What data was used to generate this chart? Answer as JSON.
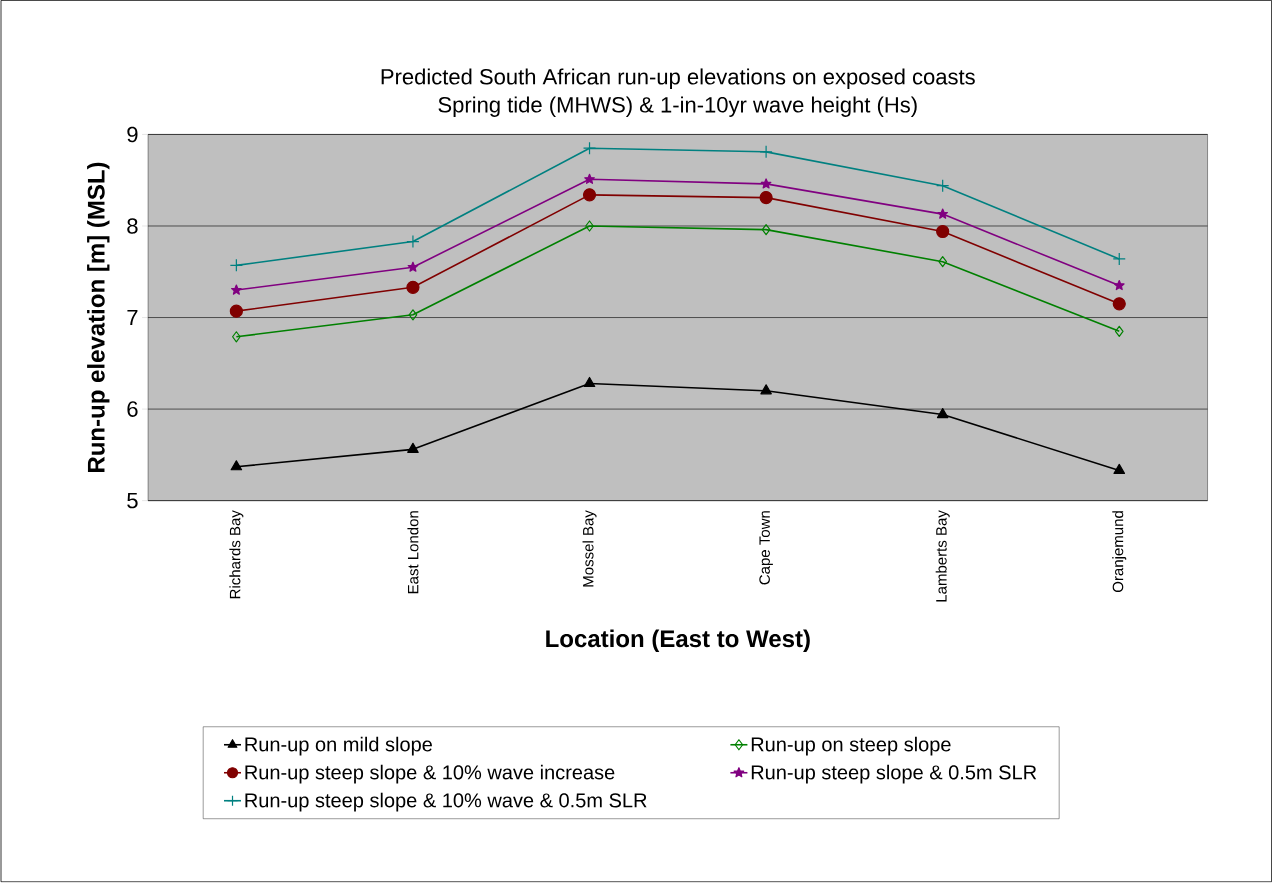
{
  "chart_data": {
    "type": "line",
    "title": "Predicted South African run-up elevations on exposed coasts",
    "subtitle": "Spring tide (MHWS) & 1-in-10yr wave height (Hs)",
    "xlabel": "Location (East to West)",
    "ylabel": "Run-up elevation [m] (MSL)",
    "categories": [
      "Richards Bay",
      "East London",
      "Mossel Bay",
      "Cape Town",
      "Lamberts Bay",
      "Oranjemund"
    ],
    "ylim": [
      5,
      9
    ],
    "yticks": [
      5,
      6,
      7,
      8,
      9
    ],
    "grid": "y",
    "legend": "bottom",
    "line_style": "solid",
    "series": [
      {
        "name": "Run-up on mild slope",
        "color": "#000000",
        "marker": "triangle",
        "values": [
          5.37,
          5.56,
          6.28,
          6.2,
          5.94,
          5.33
        ]
      },
      {
        "name": "Run-up on steep slope",
        "color": "#008000",
        "marker": "diamond",
        "values": [
          6.79,
          7.03,
          8.0,
          7.96,
          7.61,
          6.85
        ]
      },
      {
        "name": "Run-up steep slope & 10% wave increase",
        "color": "#800000",
        "marker": "circle",
        "values": [
          7.07,
          7.33,
          8.34,
          8.31,
          7.94,
          7.15
        ]
      },
      {
        "name": "Run-up steep slope &  0.5m SLR",
        "color": "#800080",
        "marker": "star",
        "values": [
          7.3,
          7.55,
          8.51,
          8.46,
          8.13,
          7.35
        ]
      },
      {
        "name": "Run-up steep slope & 10% wave &  0.5m SLR",
        "color": "#008080",
        "marker": "cross",
        "values": [
          7.57,
          7.83,
          8.85,
          8.81,
          8.44,
          7.64
        ]
      }
    ]
  }
}
